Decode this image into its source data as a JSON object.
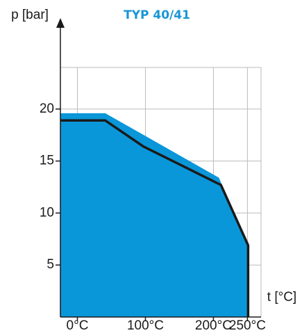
{
  "chart_data": {
    "type": "area",
    "title": "TYP 40/41",
    "y_label": "p [bar]",
    "x_label": "t [°C]",
    "xlim": [
      -25,
      270
    ],
    "ylim": [
      0,
      24
    ],
    "xticks": [
      {
        "value": 0,
        "label": "0°C"
      },
      {
        "value": 100,
        "label": "100°C"
      },
      {
        "value": 200,
        "label": "200°C"
      },
      {
        "value": 250,
        "label": "250°C"
      }
    ],
    "yticks": [
      5,
      10,
      15,
      20
    ],
    "grid": true,
    "series": [
      {
        "type": "area",
        "color": "#0a97d9",
        "x": [
          -25,
          41,
          208,
          251,
          251
        ],
        "values": [
          19.6,
          19.6,
          13.4,
          6.9,
          0
        ]
      },
      {
        "type": "line",
        "color": "#1a1a1a",
        "x": [
          -25,
          41,
          97,
          211,
          251,
          251
        ],
        "values": [
          18.9,
          18.9,
          16.4,
          12.7,
          6.9,
          0
        ]
      }
    ]
  }
}
